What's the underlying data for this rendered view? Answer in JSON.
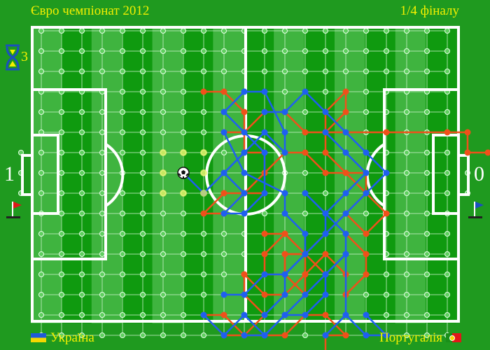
{
  "header": {
    "title": "Євро чемпіонат 2012",
    "stage": "1/4 фіналу"
  },
  "teams": {
    "left": {
      "name": "Україна",
      "score": "1",
      "flag_colors": [
        "#1e5bd8",
        "#f4d800"
      ]
    },
    "right": {
      "name": "Португалія",
      "score": "0",
      "flag_colors": [
        "#1a8f1a",
        "#e01818"
      ]
    }
  },
  "timer": {
    "icon": "hourglass-icon",
    "count": "3"
  },
  "colors": {
    "player_left": "#1f5ff0",
    "player_right": "#f0501a",
    "field_dark": "#0f9a0f",
    "field_light": "#3fb43f",
    "lines": "#ffffff",
    "possible_move": "#e8f060"
  },
  "board": {
    "columns": 21,
    "rows": 15
  },
  "ball": {
    "col": 8,
    "row": 7
  },
  "possible_moves": [
    [
      7,
      6
    ],
    [
      8,
      6
    ],
    [
      9,
      6
    ],
    [
      7,
      7
    ],
    [
      9,
      7
    ],
    [
      7,
      8
    ],
    [
      8,
      8
    ],
    [
      9,
      8
    ]
  ],
  "paths": {
    "blue": [
      [
        [
          11,
          3
        ],
        [
          12,
          3
        ],
        [
          13,
          5
        ],
        [
          13,
          6
        ],
        [
          12,
          5
        ],
        [
          11,
          6
        ],
        [
          10,
          7
        ],
        [
          9,
          8
        ],
        [
          8,
          7
        ]
      ],
      [
        [
          11,
          3
        ],
        [
          10,
          4
        ],
        [
          11,
          5
        ],
        [
          12,
          6
        ],
        [
          12,
          8
        ],
        [
          11,
          9
        ],
        [
          10,
          9
        ],
        [
          11,
          8
        ],
        [
          10,
          7
        ],
        [
          11,
          6
        ]
      ],
      [
        [
          10,
          5
        ],
        [
          11,
          7
        ],
        [
          13,
          8
        ],
        [
          13,
          9
        ],
        [
          14,
          10
        ],
        [
          14,
          11
        ],
        [
          13,
          12
        ],
        [
          12,
          12
        ],
        [
          11,
          13
        ],
        [
          10,
          13
        ]
      ],
      [
        [
          14,
          8
        ],
        [
          15,
          9
        ],
        [
          16,
          10
        ],
        [
          16,
          11
        ],
        [
          15,
          12
        ],
        [
          15,
          13
        ],
        [
          14,
          14
        ],
        [
          13,
          14
        ],
        [
          12,
          15
        ],
        [
          11,
          15
        ]
      ],
      [
        [
          15,
          5
        ],
        [
          16,
          6
        ],
        [
          17,
          7
        ],
        [
          16,
          8
        ],
        [
          15,
          9
        ],
        [
          15,
          10
        ],
        [
          14,
          11
        ],
        [
          13,
          12
        ],
        [
          13,
          13
        ],
        [
          12,
          14
        ]
      ],
      [
        [
          12,
          4
        ],
        [
          13,
          4
        ],
        [
          14,
          3
        ],
        [
          15,
          4
        ],
        [
          16,
          5
        ],
        [
          17,
          6
        ],
        [
          18,
          7
        ],
        [
          17,
          8
        ],
        [
          16,
          9
        ],
        [
          15,
          10
        ]
      ],
      [
        [
          9,
          14
        ],
        [
          10,
          15
        ],
        [
          11,
          14
        ],
        [
          12,
          15
        ],
        [
          13,
          14
        ],
        [
          14,
          13
        ],
        [
          15,
          12
        ],
        [
          16,
          11
        ],
        [
          16,
          14
        ],
        [
          15,
          15
        ]
      ],
      [
        [
          16,
          14
        ],
        [
          17,
          15
        ],
        [
          18,
          15
        ],
        [
          17,
          14
        ]
      ]
    ],
    "red": [
      [
        [
          9,
          3
        ],
        [
          10,
          3
        ],
        [
          11,
          4
        ],
        [
          11,
          6
        ],
        [
          12,
          6
        ],
        [
          12,
          7
        ],
        [
          11,
          8
        ],
        [
          10,
          9
        ],
        [
          9,
          9
        ],
        [
          10,
          8
        ],
        [
          12,
          8
        ]
      ],
      [
        [
          10,
          5
        ],
        [
          11,
          5
        ],
        [
          12,
          4
        ],
        [
          13,
          4
        ],
        [
          14,
          5
        ],
        [
          15,
          5
        ],
        [
          16,
          4
        ],
        [
          16,
          3
        ],
        [
          15,
          4
        ],
        [
          15,
          5
        ],
        [
          15,
          6
        ],
        [
          16,
          7
        ],
        [
          17,
          7
        ],
        [
          17,
          8
        ],
        [
          16,
          9
        ],
        [
          15,
          10
        ],
        [
          14,
          11
        ],
        [
          13,
          11
        ],
        [
          13,
          12
        ],
        [
          14,
          13
        ],
        [
          14,
          12
        ],
        [
          15,
          11
        ],
        [
          16,
          12
        ],
        [
          16,
          13
        ],
        [
          17,
          12
        ],
        [
          17,
          11
        ],
        [
          16,
          10
        ]
      ],
      [
        [
          15,
          5
        ],
        [
          18,
          5
        ],
        [
          21,
          5
        ],
        [
          22,
          5
        ],
        [
          22,
          6
        ],
        [
          23,
          6
        ]
      ],
      [
        [
          12,
          7
        ],
        [
          13,
          6
        ],
        [
          14,
          6
        ],
        [
          15,
          7
        ],
        [
          16,
          7
        ],
        [
          17,
          8
        ],
        [
          18,
          9
        ],
        [
          17,
          10
        ],
        [
          16,
          9
        ]
      ],
      [
        [
          11,
          12
        ],
        [
          11,
          13
        ],
        [
          12,
          14
        ],
        [
          11,
          15
        ],
        [
          10,
          14
        ],
        [
          9,
          14
        ],
        [
          10,
          15
        ],
        [
          11,
          15
        ],
        [
          12,
          15
        ],
        [
          13,
          15
        ],
        [
          14,
          14
        ],
        [
          15,
          14
        ],
        [
          16,
          15
        ],
        [
          15,
          15
        ],
        [
          15,
          16
        ]
      ],
      [
        [
          12,
          10
        ],
        [
          13,
          10
        ],
        [
          14,
          11
        ],
        [
          13,
          11
        ],
        [
          13,
          12
        ],
        [
          12,
          12
        ],
        [
          12,
          11
        ],
        [
          13,
          10
        ]
      ],
      [
        [
          11,
          12
        ],
        [
          12,
          13
        ],
        [
          13,
          13
        ],
        [
          14,
          12
        ],
        [
          14,
          11
        ],
        [
          15,
          12
        ]
      ]
    ]
  }
}
